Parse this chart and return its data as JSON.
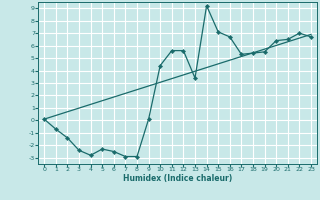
{
  "xlabel": "Humidex (Indice chaleur)",
  "background_color": "#c8e8e8",
  "line_color": "#1a6b6b",
  "xlim": [
    -0.5,
    23.5
  ],
  "ylim": [
    -3.5,
    9.5
  ],
  "xticks": [
    0,
    1,
    2,
    3,
    4,
    5,
    6,
    7,
    8,
    9,
    10,
    11,
    12,
    13,
    14,
    15,
    16,
    17,
    18,
    19,
    20,
    21,
    22,
    23
  ],
  "yticks": [
    -3,
    -2,
    -1,
    0,
    1,
    2,
    3,
    4,
    5,
    6,
    7,
    8,
    9
  ],
  "line1_x": [
    0,
    1,
    2,
    3,
    4,
    5,
    6,
    7,
    8,
    9,
    10,
    11,
    12,
    13,
    14,
    15,
    16,
    17,
    18,
    19,
    20,
    21,
    22,
    23
  ],
  "line1_y": [
    0.1,
    -0.7,
    -1.4,
    -2.4,
    -2.8,
    -2.3,
    -2.5,
    -2.9,
    -2.9,
    0.1,
    4.4,
    5.6,
    5.6,
    3.4,
    9.2,
    7.1,
    6.7,
    5.3,
    5.4,
    5.5,
    6.4,
    6.5,
    7.0,
    6.7
  ],
  "line2_x": [
    0,
    23
  ],
  "line2_y": [
    0.1,
    6.9
  ]
}
